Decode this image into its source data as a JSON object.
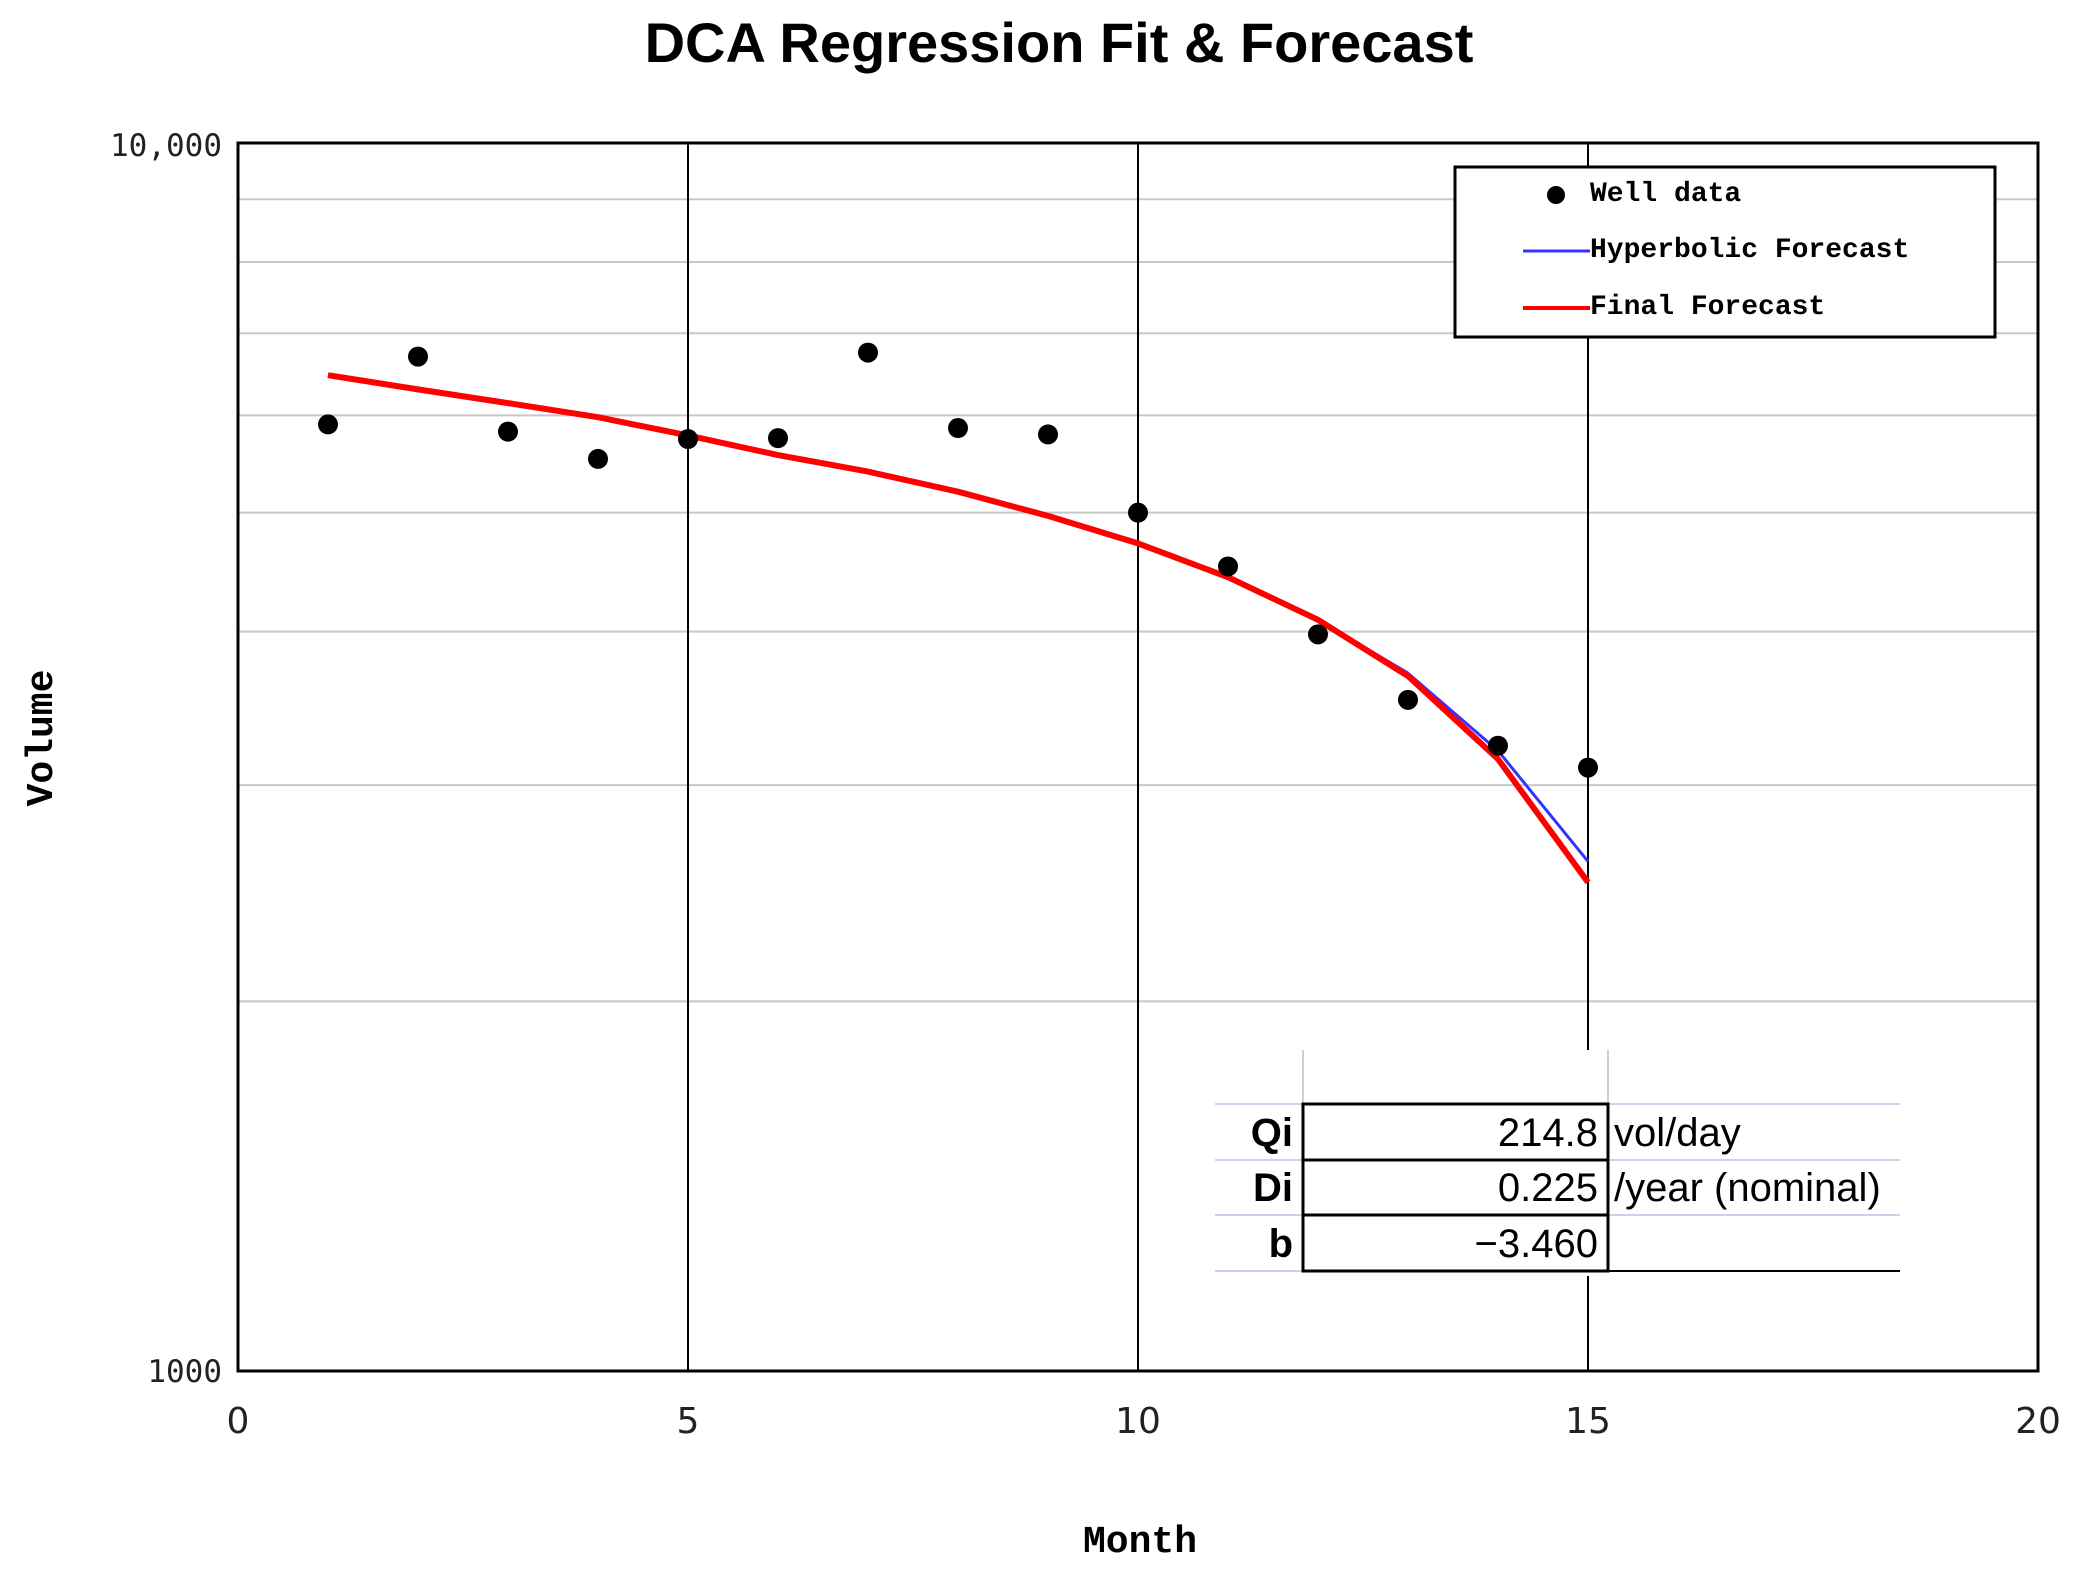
{
  "chart_data": {
    "type": "scatter",
    "title": "DCA Regression Fit & Forecast",
    "xlabel": "Month",
    "ylabel": "Volume",
    "xlim": [
      0,
      20
    ],
    "ylim": [
      1000,
      10000
    ],
    "yscale": "log",
    "x_ticks": [
      0,
      5,
      10,
      15,
      20
    ],
    "x_tick_labels": [
      "0",
      "5",
      "10",
      "15",
      "20"
    ],
    "y_tick_labels": [
      "1000",
      "10,000"
    ],
    "legend_position": "top-right",
    "series": [
      {
        "name": "Well data",
        "kind": "points",
        "color": "#000000",
        "x": [
          1,
          2,
          3,
          4,
          5,
          6,
          7,
          8,
          9,
          10,
          11,
          12,
          13,
          14,
          15
        ],
        "y": [
          5900,
          6700,
          5820,
          5530,
          5740,
          5750,
          6750,
          5860,
          5790,
          5000,
          4520,
          3980,
          3520,
          3230,
          3100
        ]
      },
      {
        "name": "Hyperbolic Forecast",
        "kind": "line",
        "color": "#3333ff",
        "x": [
          1,
          2,
          3,
          4,
          5,
          6,
          7,
          8,
          9,
          10,
          11,
          12,
          13,
          14,
          15
        ],
        "y": [
          6470,
          6300,
          6140,
          5980,
          5780,
          5570,
          5400,
          5200,
          4970,
          4720,
          4430,
          4090,
          3700,
          3200,
          2600
        ]
      },
      {
        "name": "Final Forecast",
        "kind": "line",
        "color": "#ff0000",
        "x": [
          1,
          2,
          3,
          4,
          5,
          6,
          7,
          8,
          9,
          10,
          11,
          12,
          13,
          14,
          15
        ],
        "y": [
          6470,
          6300,
          6140,
          5980,
          5780,
          5570,
          5400,
          5200,
          4970,
          4720,
          4430,
          4090,
          3680,
          3150,
          2500
        ]
      }
    ]
  },
  "params": [
    {
      "name": "Qi",
      "value": "214.8",
      "unit": "vol/day"
    },
    {
      "name": "Di",
      "value": "0.225",
      "unit": "/year (nominal)"
    },
    {
      "name": "b",
      "value": "−3.460",
      "unit": ""
    }
  ]
}
